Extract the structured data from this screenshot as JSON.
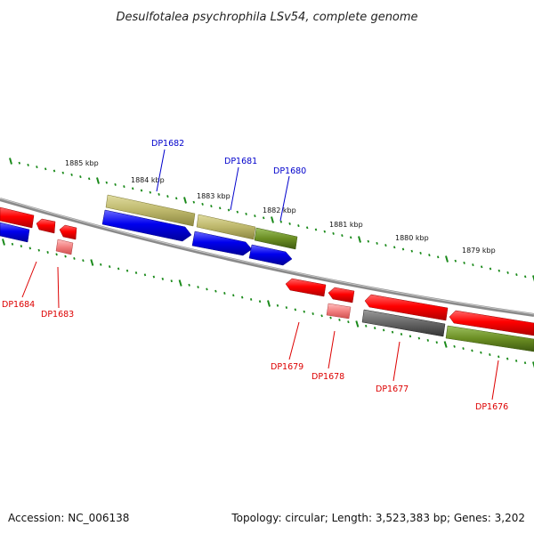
{
  "title": "Desulfotalea psychrophila LSv54, complete genome",
  "accession": "Accession: NC_006138",
  "topology": "Topology: circular; Length: 3,523,383 bp; Genes: 3,202",
  "colors": {
    "forward_label": "#0000cc",
    "reverse_label": "#dd0000",
    "tick_green": "#1a8a1a",
    "backbone": "#8a8a8a"
  },
  "scale_ticks": [
    {
      "label": "1885 kbp"
    },
    {
      "label": "1884 kbp"
    },
    {
      "label": "1883 kbp"
    },
    {
      "label": "1882 kbp"
    },
    {
      "label": "1881 kbp"
    },
    {
      "label": "1880 kbp"
    },
    {
      "label": "1879 kbp"
    }
  ],
  "genes_forward_labeled": [
    {
      "label": "DP1682",
      "color": "#0000cc"
    },
    {
      "label": "DP1681",
      "color": "#0000cc"
    },
    {
      "label": "DP1680",
      "color": "#0000cc"
    }
  ],
  "genes_reverse_labeled": [
    {
      "label": "DP1684",
      "color": "#dd0000"
    },
    {
      "label": "DP1683",
      "color": "#dd0000"
    },
    {
      "label": "DP1679",
      "color": "#dd0000"
    },
    {
      "label": "DP1678",
      "color": "#dd0000"
    },
    {
      "label": "DP1677",
      "color": "#dd0000"
    },
    {
      "label": "DP1676",
      "color": "#dd0000"
    }
  ]
}
